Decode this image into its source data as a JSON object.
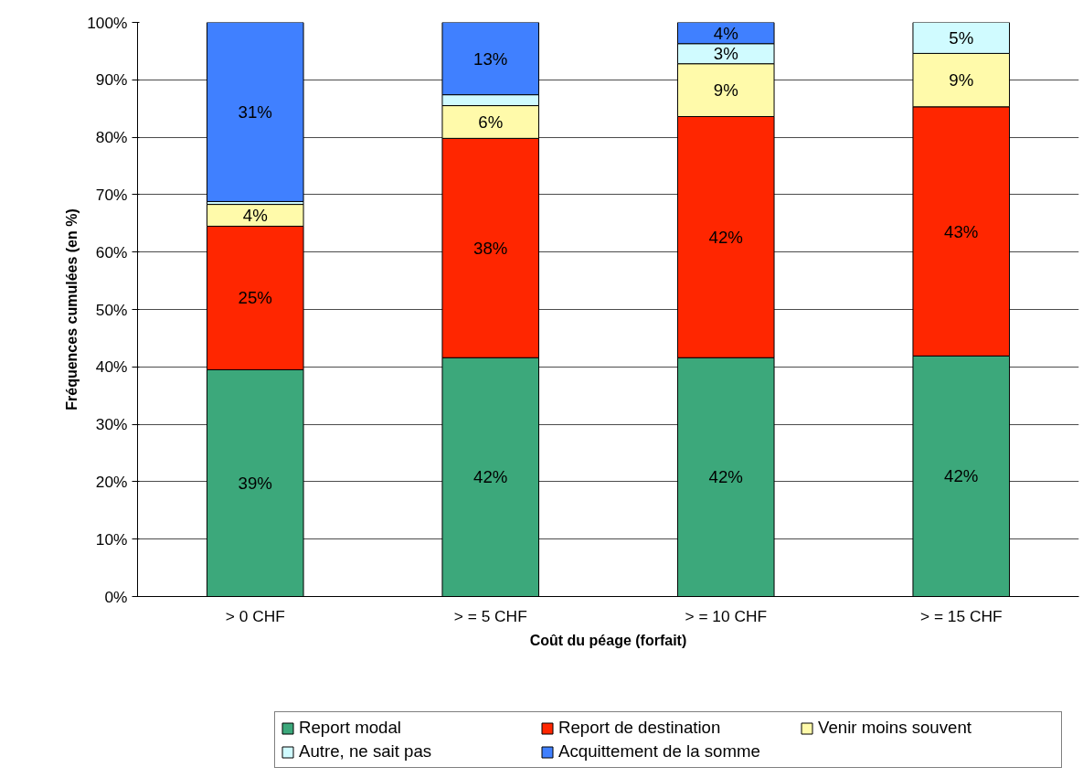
{
  "chart_data": {
    "type": "bar",
    "stacked": true,
    "xlabel": "Coût du péage (forfait)",
    "ylabel": "Fréquences cumulées (en %)",
    "categories": [
      "> 0 CHF",
      "> = 5 CHF",
      "> = 10 CHF",
      "> = 15 CHF"
    ],
    "series": [
      {
        "name": "Report modal",
        "color": "#3ca87b",
        "values": [
          39.5,
          41.6,
          41.6,
          41.9
        ],
        "value_labels": [
          "39%",
          "42%",
          "42%",
          "42%"
        ]
      },
      {
        "name": "Report de destination",
        "color": "#ff2600",
        "values": [
          25.0,
          38.2,
          42.0,
          43.4
        ],
        "value_labels": [
          "25%",
          "38%",
          "42%",
          "43%"
        ]
      },
      {
        "name": "Venir moins souvent",
        "color": "#fffaaa",
        "values": [
          3.8,
          5.7,
          9.2,
          9.3
        ],
        "value_labels": [
          "4%",
          "6%",
          "9%",
          "9%"
        ]
      },
      {
        "name": "Autre, ne sait pas",
        "color": "#d0fbff",
        "values": [
          0.5,
          1.9,
          3.5,
          5.4
        ],
        "value_labels": [
          null,
          null,
          "3%",
          "5%"
        ]
      },
      {
        "name": "Acquittement de la somme",
        "color": "#4080ff",
        "values": [
          31.2,
          12.6,
          3.7,
          null
        ],
        "value_labels": [
          "31%",
          "13%",
          "4%",
          null
        ]
      }
    ],
    "ylim": [
      0,
      100
    ],
    "yticks": [
      {
        "value": 0,
        "label": "0%"
      },
      {
        "value": 10,
        "label": "10%"
      },
      {
        "value": 20,
        "label": "20%"
      },
      {
        "value": 30,
        "label": "30%"
      },
      {
        "value": 40,
        "label": "40%"
      },
      {
        "value": 50,
        "label": "50%"
      },
      {
        "value": 60,
        "label": "60%"
      },
      {
        "value": 70,
        "label": "70%"
      },
      {
        "value": 80,
        "label": "80%"
      },
      {
        "value": 90,
        "label": "90%"
      },
      {
        "value": 100,
        "label": "100%"
      }
    ],
    "grid": "y",
    "legend": "bottom"
  }
}
